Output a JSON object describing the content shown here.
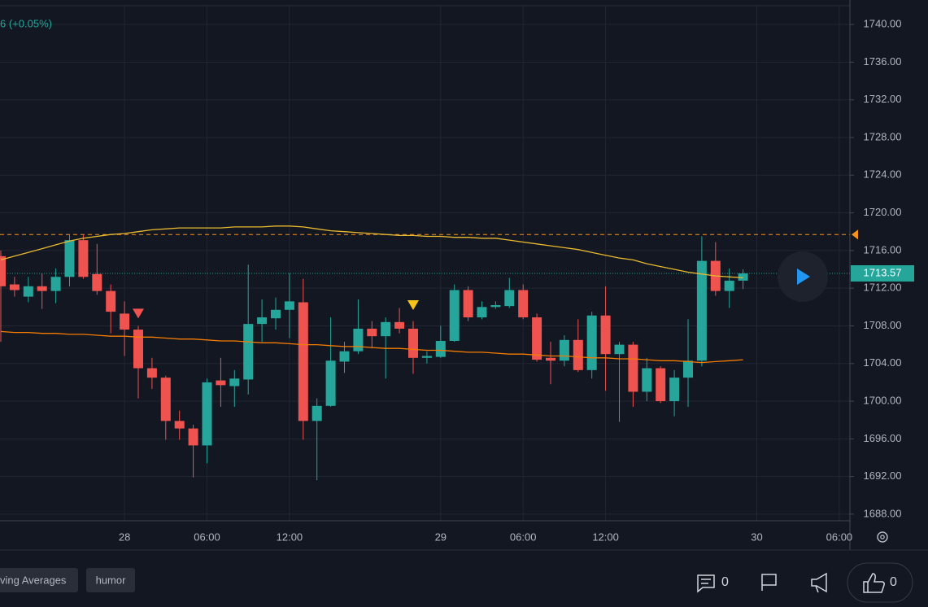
{
  "header": {
    "change": "6 (+0.05%)"
  },
  "chart_data": {
    "type": "candlestick",
    "categories": [
      null,
      null,
      null,
      null,
      null,
      null,
      null,
      null,
      null,
      "28",
      null,
      null,
      null,
      null,
      null,
      "06:00",
      null,
      null,
      null,
      null,
      null,
      "12:00",
      null,
      null,
      null,
      null,
      null,
      null,
      null,
      null,
      null,
      null,
      "29",
      null,
      null,
      null,
      null,
      null,
      "06:00",
      null,
      null,
      null,
      null,
      null,
      "12:00",
      null,
      null,
      null,
      null,
      null,
      null,
      null,
      null,
      null,
      null,
      "30",
      null,
      null,
      null,
      null,
      null,
      "06:00"
    ],
    "open": [
      1715.4,
      1712.4,
      1711.1,
      1712.2,
      1711.7,
      1713.2,
      1717.1,
      1713.5,
      1711.7,
      1709.3,
      1707.6,
      1703.5,
      1702.5,
      1697.9,
      1697.1,
      1695.3,
      1702.2,
      1701.6,
      1702.3,
      1708.2,
      1708.8,
      1709.7,
      1710.5,
      1697.9,
      1699.5,
      1704.2,
      1705.3,
      1707.7,
      1706.9,
      1708.4,
      1707.7,
      1704.6,
      1704.7,
      1706.4,
      1711.8,
      1708.9,
      1710.0,
      1710.1,
      1711.8,
      1708.9,
      1704.6,
      1704.3,
      1706.5,
      1703.3,
      1709.1,
      1705.0,
      1706.0,
      1701.0,
      1703.5,
      1700.0,
      1702.5,
      1704.3,
      1714.9,
      1711.7,
      1712.8,
      null,
      null,
      null,
      null,
      null,
      null,
      null
    ],
    "high": [
      1716.0,
      1713.2,
      1713.2,
      1713.6,
      1714.1,
      1717.7,
      1717.7,
      1716.7,
      1712.4,
      1710.6,
      1708.0,
      1704.6,
      1702.7,
      1699.0,
      1697.5,
      1702.4,
      1704.6,
      1703.3,
      1714.5,
      1710.8,
      1711.0,
      1713.6,
      1713.0,
      1700.3,
      1708.9,
      1706.3,
      1710.8,
      1708.5,
      1708.9,
      1709.9,
      1708.5,
      1705.3,
      1708.0,
      1712.4,
      1712.2,
      1710.6,
      1710.6,
      1713.1,
      1712.4,
      1709.3,
      1706.3,
      1707.0,
      1708.7,
      1709.5,
      1712.2,
      1706.3,
      1706.3,
      1704.6,
      1703.7,
      1703.3,
      1708.7,
      1717.5,
      1716.9,
      1714.1,
      1714.0,
      null,
      null,
      null,
      null,
      null,
      null,
      null
    ],
    "low": [
      1706.3,
      1711.1,
      1710.5,
      1709.8,
      1710.4,
      1712.2,
      1713.0,
      1711.3,
      1707.2,
      1704.8,
      1700.3,
      1701.3,
      1695.9,
      1695.9,
      1691.9,
      1693.4,
      1699.4,
      1699.4,
      1700.7,
      1706.3,
      1707.6,
      1706.7,
      1695.9,
      1691.6,
      1699.4,
      1703.0,
      1705.0,
      1705.6,
      1702.4,
      1707.2,
      1702.9,
      1704.0,
      1704.6,
      1706.3,
      1708.5,
      1708.7,
      1709.8,
      1709.9,
      1708.7,
      1704.2,
      1701.8,
      1703.7,
      1703.1,
      1702.4,
      1701.1,
      1697.8,
      1699.4,
      1700.0,
      1699.8,
      1698.4,
      1699.4,
      1703.7,
      1711.2,
      1709.9,
      1711.9,
      null,
      null,
      null,
      null,
      null,
      null,
      null
    ],
    "close": [
      1712.2,
      1711.8,
      1712.2,
      1711.7,
      1713.2,
      1717.1,
      1713.2,
      1711.7,
      1709.5,
      1707.6,
      1703.5,
      1702.5,
      1697.9,
      1697.1,
      1695.3,
      1702.0,
      1701.7,
      1702.4,
      1708.2,
      1708.9,
      1709.7,
      1710.6,
      1697.9,
      1699.5,
      1704.3,
      1705.3,
      1707.7,
      1706.9,
      1708.4,
      1707.7,
      1704.6,
      1704.8,
      1706.4,
      1711.8,
      1708.9,
      1710.0,
      1710.2,
      1711.8,
      1708.9,
      1704.4,
      1704.3,
      1706.5,
      1703.3,
      1709.1,
      1705.0,
      1706.0,
      1701.0,
      1703.5,
      1700.0,
      1702.5,
      1704.3,
      1714.9,
      1711.7,
      1712.8,
      1713.57,
      null,
      null,
      null,
      null,
      null,
      null,
      null
    ],
    "up_color": "#26a69a",
    "down_color": "#ef5350",
    "moving_averages": [
      {
        "color": "#e8b92f",
        "values": [
          1715.0,
          1715.4,
          1715.8,
          1716.2,
          1716.6,
          1717.0,
          1717.3,
          1717.5,
          1717.7,
          1717.8,
          1718.0,
          1718.2,
          1718.3,
          1718.4,
          1718.4,
          1718.4,
          1718.4,
          1718.5,
          1718.5,
          1718.5,
          1718.6,
          1718.6,
          1718.5,
          1718.3,
          1718.1,
          1718.0,
          1717.9,
          1717.8,
          1717.7,
          1717.6,
          1717.6,
          1717.5,
          1717.5,
          1717.4,
          1717.4,
          1717.3,
          1717.3,
          1717.1,
          1716.9,
          1716.7,
          1716.5,
          1716.3,
          1716.1,
          1715.8,
          1715.5,
          1715.2,
          1715.0,
          1714.6,
          1714.3,
          1714.0,
          1713.7,
          1713.5,
          1713.3,
          1713.2,
          1713.1,
          null,
          null,
          null,
          null,
          null,
          null,
          null
        ]
      },
      {
        "color": "#f57c00",
        "values": [
          1707.4,
          1707.3,
          1707.3,
          1707.2,
          1707.2,
          1707.1,
          1707.1,
          1707.0,
          1706.9,
          1706.9,
          1706.8,
          1706.8,
          1706.7,
          1706.6,
          1706.6,
          1706.5,
          1706.4,
          1706.4,
          1706.3,
          1706.2,
          1706.2,
          1706.1,
          1706.0,
          1706.0,
          1705.9,
          1705.8,
          1705.8,
          1705.7,
          1705.6,
          1705.6,
          1705.5,
          1705.4,
          1705.4,
          1705.3,
          1705.2,
          1705.2,
          1705.1,
          1705.0,
          1705.0,
          1704.9,
          1704.8,
          1704.8,
          1704.7,
          1704.6,
          1704.6,
          1704.5,
          1704.5,
          1704.4,
          1704.3,
          1704.3,
          1704.2,
          1704.1,
          1704.2,
          1704.3,
          1704.4,
          null,
          null,
          null,
          null,
          null,
          null,
          null
        ]
      }
    ],
    "alert_line": 1717.7,
    "alert_color": "#f7931a",
    "last_price": 1713.57,
    "last_price_color": "#26a69a",
    "markers": [
      {
        "index": 10,
        "value": 1709.3,
        "color": "#ef5350"
      },
      {
        "index": 30,
        "value": 1710.2,
        "color": "#f5c518"
      }
    ],
    "ylim": [
      1687.3,
      1742
    ],
    "yticks": [
      {
        "value": 1740,
        "label": "1740.00"
      },
      {
        "value": 1736,
        "label": "1736.00"
      },
      {
        "value": 1732,
        "label": "1732.00"
      },
      {
        "value": 1728,
        "label": "1728.00"
      },
      {
        "value": 1724,
        "label": "1724.00"
      },
      {
        "value": 1720,
        "label": "1720.00"
      },
      {
        "value": 1716,
        "label": "1716.00"
      },
      {
        "value": 1712,
        "label": "1712.00"
      },
      {
        "value": 1708,
        "label": "1708.00"
      },
      {
        "value": 1704,
        "label": "1704.00"
      },
      {
        "value": 1700,
        "label": "1700.00"
      },
      {
        "value": 1696,
        "label": "1696.00"
      },
      {
        "value": 1692,
        "label": "1692.00"
      },
      {
        "value": 1688,
        "label": "1688.00"
      }
    ],
    "grid": true
  },
  "footer": {
    "tags": [
      "ving Averages",
      "humor"
    ],
    "comments": 0,
    "likes": 0
  }
}
